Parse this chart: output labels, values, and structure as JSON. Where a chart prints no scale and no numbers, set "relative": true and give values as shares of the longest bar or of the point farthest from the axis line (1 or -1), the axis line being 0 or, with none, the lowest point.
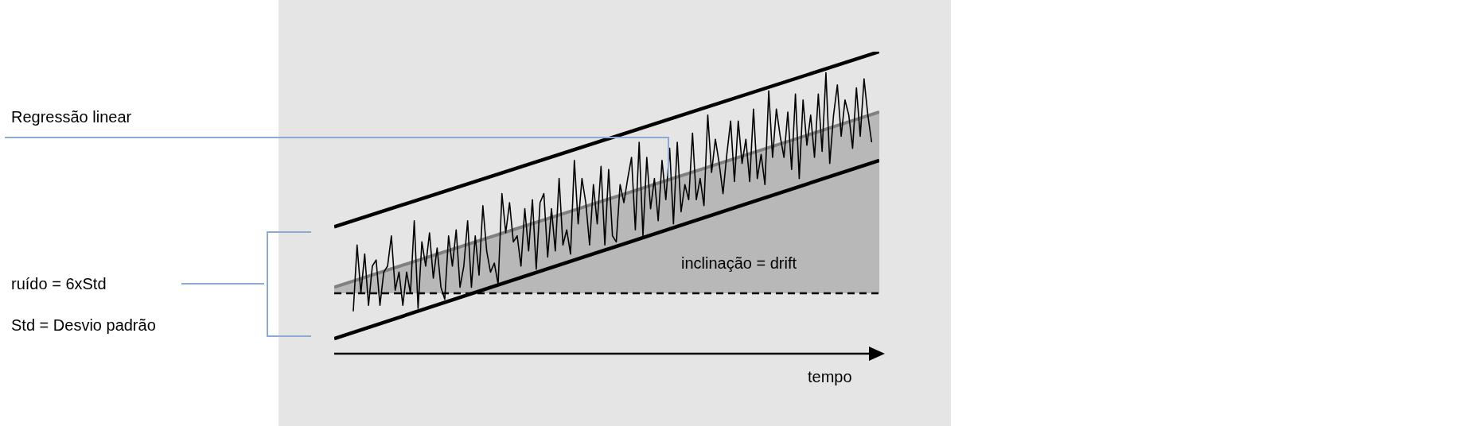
{
  "chart_data": {
    "type": "line",
    "relative": true,
    "xlabel": "tempo",
    "categories": [
      null,
      null,
      null,
      null,
      null,
      null,
      null,
      null,
      null,
      null,
      null,
      null,
      null,
      null,
      null,
      null,
      null,
      null,
      null,
      null,
      null,
      null,
      null,
      null,
      null,
      null,
      null,
      null,
      null,
      null,
      null,
      null,
      null,
      null,
      null,
      null,
      null,
      null,
      null,
      null,
      null,
      null,
      null,
      null,
      null,
      null,
      null,
      null,
      null,
      null,
      null,
      null,
      null,
      null,
      null,
      null,
      null,
      null,
      null,
      null,
      null,
      null,
      null,
      null,
      null,
      null,
      null,
      null,
      null,
      null,
      null,
      null,
      null,
      null,
      null,
      null,
      null,
      null,
      null,
      null,
      null,
      null,
      null,
      null,
      null,
      null,
      null,
      null,
      null,
      null,
      null,
      null,
      null,
      null,
      null,
      null,
      null,
      null,
      null,
      null,
      null,
      null,
      null,
      null,
      null,
      null,
      null,
      null,
      null,
      null,
      null,
      null,
      null,
      null,
      null,
      null,
      null,
      null,
      null,
      null,
      null,
      null,
      null,
      null,
      null,
      null,
      null,
      null,
      null,
      null,
      null,
      null,
      null,
      null,
      null,
      null,
      null,
      null,
      null,
      null,
      null,
      null,
      null,
      null
    ],
    "series": [
      {
        "type": "area",
        "color": "#808080",
        "values": [
          0.22,
          null,
          null,
          null,
          null,
          null,
          null,
          null,
          null,
          null,
          null,
          null,
          null,
          null,
          null,
          null,
          null,
          null,
          null,
          null,
          null,
          null,
          null,
          null,
          null,
          null,
          null,
          null,
          null,
          null,
          null,
          null,
          null,
          null,
          null,
          null,
          null,
          null,
          null,
          null,
          null,
          null,
          null,
          null,
          null,
          null,
          null,
          null,
          null,
          null,
          null,
          null,
          null,
          null,
          null,
          null,
          null,
          null,
          null,
          null,
          null,
          null,
          null,
          null,
          null,
          null,
          null,
          null,
          null,
          null,
          null,
          null,
          null,
          null,
          null,
          null,
          null,
          null,
          null,
          null,
          null,
          null,
          null,
          null,
          null,
          null,
          null,
          null,
          null,
          null,
          null,
          null,
          null,
          null,
          null,
          null,
          null,
          null,
          null,
          null,
          null,
          null,
          null,
          null,
          null,
          null,
          null,
          null,
          null,
          null,
          null,
          null,
          null,
          null,
          null,
          null,
          null,
          null,
          null,
          null,
          null,
          null,
          null,
          null,
          null,
          null,
          null,
          null,
          null,
          null,
          null,
          null,
          null,
          null,
          null,
          null,
          null,
          null,
          null,
          null,
          null,
          null,
          null,
          0.8
        ]
      },
      {
        "type": "line",
        "color": "#000000",
        "values": [
          null,
          null,
          null,
          null,
          null,
          0.14,
          0.36,
          0.2,
          0.33,
          0.16,
          0.29,
          0.31,
          0.16,
          0.27,
          0.29,
          0.39,
          0.21,
          0.27,
          0.16,
          0.27,
          0.2,
          0.44,
          0.15,
          0.37,
          0.29,
          0.4,
          0.25,
          0.35,
          0.22,
          0.18,
          0.39,
          0.29,
          0.41,
          0.22,
          0.29,
          0.44,
          0.22,
          0.39,
          0.26,
          0.49,
          0.34,
          0.27,
          0.3,
          0.23,
          0.53,
          0.4,
          0.5,
          0.37,
          0.39,
          0.29,
          0.48,
          0.34,
          0.51,
          0.28,
          0.5,
          0.53,
          0.32,
          0.48,
          0.34,
          0.58,
          0.36,
          0.41,
          0.33,
          0.64,
          0.43,
          0.58,
          0.5,
          0.36,
          0.56,
          0.43,
          0.62,
          0.36,
          0.61,
          0.39,
          0.37,
          0.56,
          0.5,
          0.58,
          0.65,
          0.41,
          0.7,
          0.39,
          0.65,
          0.48,
          0.58,
          0.44,
          0.64,
          0.51,
          0.68,
          0.43,
          0.7,
          0.47,
          0.56,
          0.51,
          0.73,
          0.51,
          0.58,
          0.49,
          0.79,
          0.6,
          0.71,
          0.63,
          0.53,
          0.66,
          0.77,
          0.57,
          0.77,
          0.63,
          0.71,
          0.57,
          0.81,
          0.58,
          0.66,
          0.56,
          0.87,
          0.65,
          0.81,
          0.72,
          0.65,
          0.8,
          0.61,
          0.86,
          0.58,
          0.84,
          0.69,
          0.79,
          0.65,
          0.86,
          0.67,
          0.93,
          0.63,
          0.79,
          0.89,
          0.72,
          0.84,
          0.79,
          0.68,
          0.88,
          0.72,
          0.91,
          0.79,
          0.7,
          null,
          null
        ]
      },
      {
        "type": "line",
        "color": "#000000",
        "values": [
          0.42,
          null,
          null,
          null,
          null,
          null,
          null,
          null,
          null,
          null,
          null,
          null,
          null,
          null,
          null,
          null,
          null,
          null,
          null,
          null,
          null,
          null,
          null,
          null,
          null,
          null,
          null,
          null,
          null,
          null,
          null,
          null,
          null,
          null,
          null,
          null,
          null,
          null,
          null,
          null,
          null,
          null,
          null,
          null,
          null,
          null,
          null,
          null,
          null,
          null,
          null,
          null,
          null,
          null,
          null,
          null,
          null,
          null,
          null,
          null,
          null,
          null,
          null,
          null,
          null,
          null,
          null,
          null,
          null,
          null,
          null,
          null,
          null,
          null,
          null,
          null,
          null,
          null,
          null,
          null,
          null,
          null,
          null,
          null,
          null,
          null,
          null,
          null,
          null,
          null,
          null,
          null,
          null,
          null,
          null,
          null,
          null,
          null,
          null,
          null,
          null,
          null,
          null,
          null,
          null,
          null,
          null,
          null,
          null,
          null,
          null,
          null,
          null,
          null,
          null,
          null,
          null,
          null,
          null,
          null,
          null,
          null,
          null,
          null,
          null,
          null,
          null,
          null,
          null,
          null,
          null,
          null,
          null,
          null,
          null,
          null,
          null,
          null,
          null,
          null,
          null,
          null,
          null,
          1.0
        ]
      },
      {
        "type": "line",
        "color": "#000000",
        "values": [
          0.05,
          null,
          null,
          null,
          null,
          null,
          null,
          null,
          null,
          null,
          null,
          null,
          null,
          null,
          null,
          null,
          null,
          null,
          null,
          null,
          null,
          null,
          null,
          null,
          null,
          null,
          null,
          null,
          null,
          null,
          null,
          null,
          null,
          null,
          null,
          null,
          null,
          null,
          null,
          null,
          null,
          null,
          null,
          null,
          null,
          null,
          null,
          null,
          null,
          null,
          null,
          null,
          null,
          null,
          null,
          null,
          null,
          null,
          null,
          null,
          null,
          null,
          null,
          null,
          null,
          null,
          null,
          null,
          null,
          null,
          null,
          null,
          null,
          null,
          null,
          null,
          null,
          null,
          null,
          null,
          null,
          null,
          null,
          null,
          null,
          null,
          null,
          null,
          null,
          null,
          null,
          null,
          null,
          null,
          null,
          null,
          null,
          null,
          null,
          null,
          null,
          null,
          null,
          null,
          null,
          null,
          null,
          null,
          null,
          null,
          null,
          null,
          null,
          null,
          null,
          null,
          null,
          null,
          null,
          null,
          null,
          null,
          null,
          null,
          null,
          null,
          null,
          null,
          null,
          null,
          null,
          null,
          null,
          null,
          null,
          null,
          null,
          null,
          null,
          null,
          null,
          null,
          null,
          0.64
        ]
      }
    ],
    "ref_lines": [
      {
        "axis": "y",
        "value": 0.2,
        "color": "#000000",
        "line_style": "dashed"
      }
    ],
    "annotations": [
      "Regressão linear",
      "ruído = 6xStd",
      "Std = Desvio padrão",
      "inclinação = drift"
    ]
  }
}
